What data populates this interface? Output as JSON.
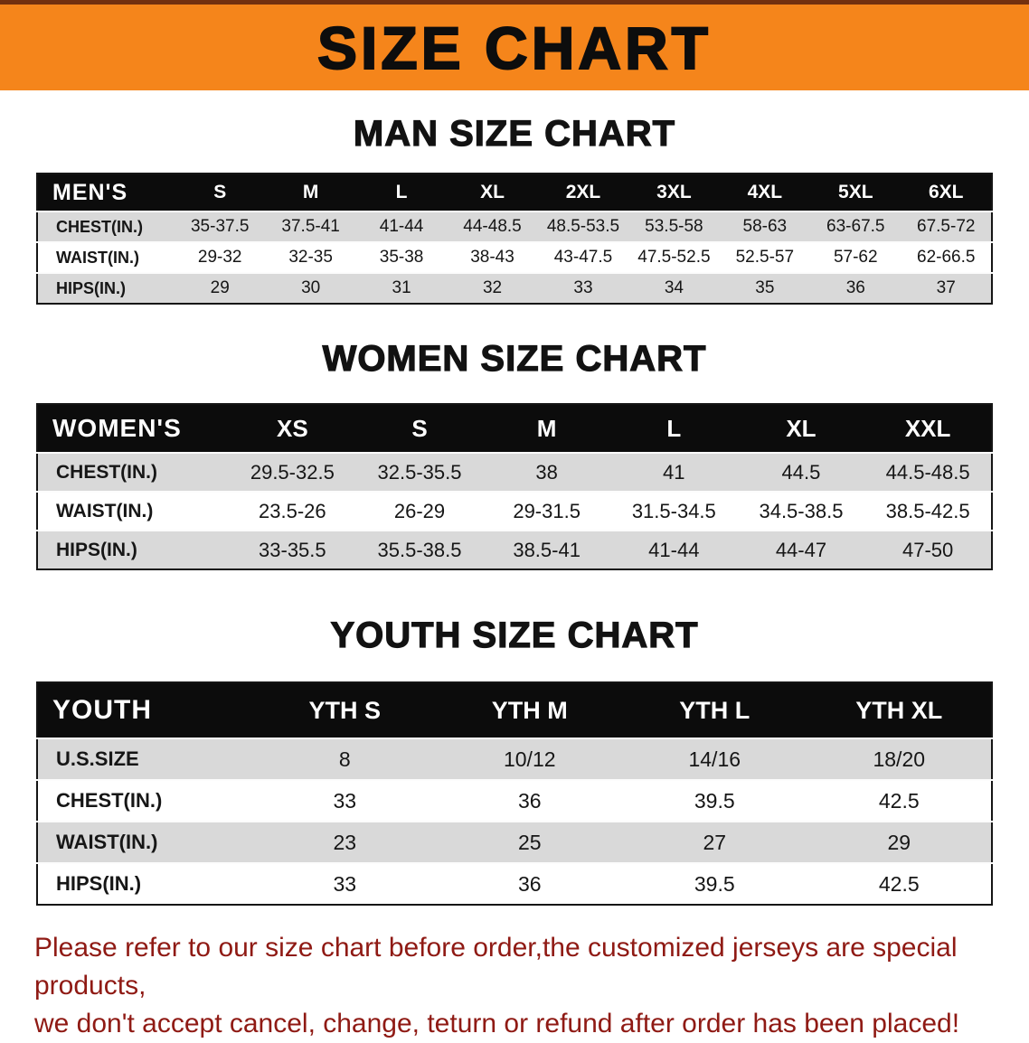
{
  "colors": {
    "banner_bg": "#F5851B",
    "banner_edge": "#73300F",
    "table_header_bg": "#0C0C0C",
    "row_stripe": "#D9D9D9",
    "footer_text": "#8F1A14"
  },
  "banner": {
    "title": "SIZE CHART"
  },
  "sections": [
    {
      "title": "MAN SIZE CHART",
      "table": {
        "label": "MEN'S",
        "columns": [
          "S",
          "M",
          "L",
          "XL",
          "2XL",
          "3XL",
          "4XL",
          "5XL",
          "6XL"
        ],
        "rows": [
          {
            "label": "CHEST(IN.)",
            "values": [
              "35-37.5",
              "37.5-41",
              "41-44",
              "44-48.5",
              "48.5-53.5",
              "53.5-58",
              "58-63",
              "63-67.5",
              "67.5-72"
            ]
          },
          {
            "label": "WAIST(IN.)",
            "values": [
              "29-32",
              "32-35",
              "35-38",
              "38-43",
              "43-47.5",
              "47.5-52.5",
              "52.5-57",
              "57-62",
              "62-66.5"
            ]
          },
          {
            "label": "HIPS(IN.)",
            "values": [
              "29",
              "30",
              "31",
              "32",
              "33",
              "34",
              "35",
              "36",
              "37"
            ]
          }
        ]
      }
    },
    {
      "title": "WOMEN SIZE CHART",
      "table": {
        "label": "WOMEN'S",
        "columns": [
          "XS",
          "S",
          "M",
          "L",
          "XL",
          "XXL"
        ],
        "rows": [
          {
            "label": "CHEST(IN.)",
            "values": [
              "29.5-32.5",
              "32.5-35.5",
              "38",
              "41",
              "44.5",
              "44.5-48.5"
            ]
          },
          {
            "label": "WAIST(IN.)",
            "values": [
              "23.5-26",
              "26-29",
              "29-31.5",
              "31.5-34.5",
              "34.5-38.5",
              "38.5-42.5"
            ]
          },
          {
            "label": "HIPS(IN.)",
            "values": [
              "33-35.5",
              "35.5-38.5",
              "38.5-41",
              "41-44",
              "44-47",
              "47-50"
            ]
          }
        ]
      }
    },
    {
      "title": "YOUTH SIZE CHART",
      "table": {
        "label": "YOUTH",
        "columns": [
          "YTH S",
          "YTH M",
          "YTH L",
          "YTH XL"
        ],
        "rows": [
          {
            "label": "U.S.SIZE",
            "values": [
              "8",
              "10/12",
              "14/16",
              "18/20"
            ]
          },
          {
            "label": "CHEST(IN.)",
            "values": [
              "33",
              "36",
              "39.5",
              "42.5"
            ]
          },
          {
            "label": "WAIST(IN.)",
            "values": [
              "23",
              "25",
              "27",
              "29"
            ]
          },
          {
            "label": "HIPS(IN.)",
            "values": [
              "33",
              "36",
              "39.5",
              "42.5"
            ]
          }
        ]
      }
    }
  ],
  "footer": {
    "lines": [
      "Please refer to our size chart before order,the customized jerseys are special products,",
      "we don't accept cancel, change, teturn or refund after order has been placed!"
    ]
  }
}
